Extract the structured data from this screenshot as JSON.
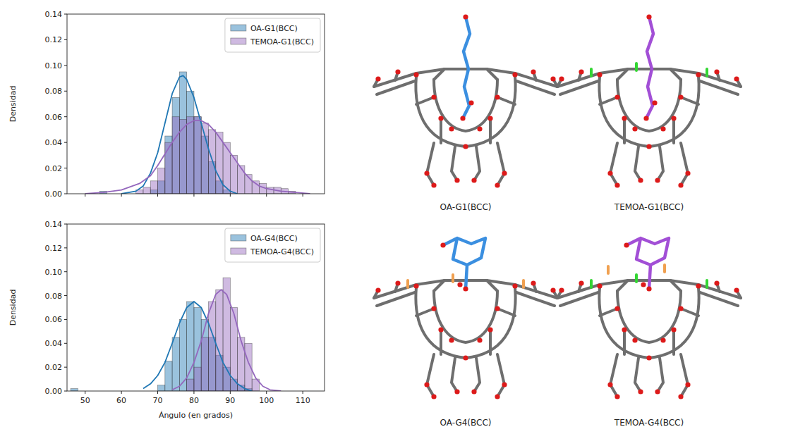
{
  "chart_data": [
    {
      "type": "histogram",
      "ylabel": "Densidad",
      "xlim": [
        45,
        116
      ],
      "xticks": [
        50,
        60,
        70,
        80,
        90,
        100,
        110
      ],
      "ylim": [
        0,
        0.14
      ],
      "yticks": [
        {
          "value": 0,
          "label": "0.00"
        },
        0.02,
        0.04,
        0.06,
        0.08,
        {
          "value": 0.1,
          "label": "0.10"
        },
        0.12,
        0.14
      ],
      "tick_labels": "y",
      "legend": "upper right",
      "series": [
        {
          "name": "OA-G1(BCC)",
          "color": "#1f77b4",
          "bins": [
            54,
            56,
            58,
            60,
            62,
            64,
            66,
            68,
            70,
            72,
            74,
            76,
            78,
            80,
            82,
            84,
            86,
            88,
            90
          ],
          "values": [
            0.002,
            0,
            0,
            0,
            0,
            0,
            0,
            0.003,
            0.01,
            0.045,
            0.075,
            0.095,
            0.08,
            0.06,
            0.045,
            0.025,
            0.01,
            0.003
          ],
          "curve": {
            "x": [
              60,
              64,
              66,
              68,
              70,
              72,
              74,
              76,
              77,
              78,
              80,
              82,
              84,
              86,
              88,
              90,
              92
            ],
            "y": [
              0,
              0.002,
              0.006,
              0.016,
              0.032,
              0.055,
              0.078,
              0.091,
              0.092,
              0.089,
              0.075,
              0.055,
              0.035,
              0.018,
              0.007,
              0.002,
              0
            ]
          }
        },
        {
          "name": "TEMOA-G1(BCC)",
          "color": "#9467bd",
          "bins": [
            64,
            66,
            68,
            70,
            72,
            74,
            76,
            78,
            80,
            82,
            84,
            86,
            88,
            90,
            92,
            94,
            96,
            98,
            100,
            102,
            104,
            106,
            108
          ],
          "values": [
            0.003,
            0.005,
            0.01,
            0.02,
            0.04,
            0.06,
            0.058,
            0.06,
            0.06,
            0.055,
            0.05,
            0.048,
            0.04,
            0.03,
            0.022,
            0.015,
            0.01,
            0.008,
            0.005,
            0.005,
            0.004,
            0.002
          ],
          "curve": {
            "x": [
              50,
              55,
              60,
              65,
              68,
              70,
              72,
              74,
              76,
              78,
              80,
              82,
              84,
              86,
              88,
              90,
              92,
              94,
              96,
              98,
              100,
              104,
              108,
              112
            ],
            "y": [
              0,
              0.001,
              0.003,
              0.008,
              0.014,
              0.022,
              0.031,
              0.04,
              0.048,
              0.054,
              0.057,
              0.057,
              0.054,
              0.048,
              0.04,
              0.032,
              0.024,
              0.016,
              0.01,
              0.006,
              0.004,
              0.002,
              0.001,
              0
            ]
          }
        }
      ]
    },
    {
      "type": "histogram",
      "ylabel": "Densidad",
      "xlabel": "Ángulo (en grados)",
      "xlim": [
        45,
        116
      ],
      "xticks": [
        50,
        60,
        70,
        80,
        90,
        100,
        110
      ],
      "ylim": [
        0,
        0.14
      ],
      "yticks": [
        {
          "value": 0,
          "label": "0.00"
        },
        0.02,
        0.04,
        0.06,
        0.08,
        {
          "value": 0.1,
          "label": "0.10"
        },
        0.12,
        0.14
      ],
      "legend": "upper right",
      "series": [
        {
          "name": "OA-G4(BCC)",
          "color": "#1f77b4",
          "bins": [
            46,
            48,
            50,
            52,
            54,
            56,
            58,
            60,
            62,
            64,
            66,
            68,
            70,
            72,
            74,
            76,
            78,
            80,
            82,
            84,
            86,
            88,
            90,
            92,
            94,
            96
          ],
          "values": [
            0.002,
            0,
            0,
            0,
            0,
            0,
            0,
            0,
            0,
            0,
            0,
            0,
            0.005,
            0.025,
            0.045,
            0.06,
            0.075,
            0.07,
            0.06,
            0.045,
            0.03,
            0.02,
            0.01,
            0.005,
            0.002
          ],
          "curve": {
            "x": [
              66,
              68,
              70,
              72,
              74,
              76,
              78,
              80,
              82,
              84,
              86,
              88,
              90,
              92,
              94,
              96
            ],
            "y": [
              0.002,
              0.006,
              0.013,
              0.024,
              0.04,
              0.057,
              0.07,
              0.075,
              0.07,
              0.057,
              0.04,
              0.024,
              0.013,
              0.006,
              0.002,
              0
            ]
          }
        },
        {
          "name": "TEMOA-G4(BCC)",
          "color": "#9467bd",
          "bins": [
            78,
            80,
            82,
            84,
            86,
            88,
            90,
            92,
            94,
            96,
            98
          ],
          "values": [
            0.01,
            0.02,
            0.045,
            0.075,
            0.085,
            0.095,
            0.07,
            0.045,
            0.04,
            0.01
          ],
          "curve": {
            "x": [
              74,
              76,
              78,
              80,
              82,
              84,
              86,
              87.5,
              89,
              91,
              93,
              95,
              97,
              99,
              101,
              104
            ],
            "y": [
              0.001,
              0.004,
              0.011,
              0.024,
              0.042,
              0.065,
              0.081,
              0.085,
              0.081,
              0.065,
              0.042,
              0.024,
              0.011,
              0.004,
              0.001,
              0
            ]
          }
        }
      ]
    }
  ],
  "structures": [
    {
      "label": "OA-G1(BCC)",
      "guest_color": "#3b8fe0",
      "accent_colors": []
    },
    {
      "label": "TEMOA-G1(BCC)",
      "guest_color": "#a24fd6",
      "accent_colors": [
        "#33d633"
      ]
    },
    {
      "label": "OA-G4(BCC)",
      "guest_color": "#3b8fe0",
      "accent_colors": [
        "#f0a050"
      ]
    },
    {
      "label": "TEMOA-G4(BCC)",
      "guest_color": "#a24fd6",
      "accent_colors": [
        "#33d633",
        "#f0a050"
      ]
    }
  ]
}
